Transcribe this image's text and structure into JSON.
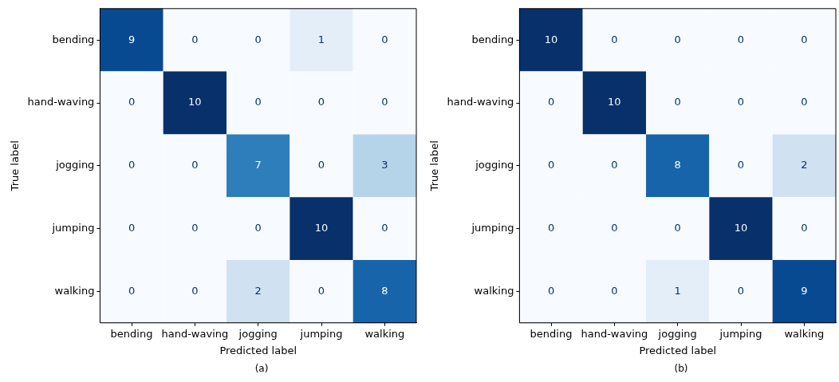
{
  "chart_data": [
    {
      "type": "heatmap",
      "categories": [
        "bending",
        "hand-waving",
        "jogging",
        "jumping",
        "walking"
      ],
      "y_categories": [
        "bending",
        "hand-waving",
        "jogging",
        "jumping",
        "walking"
      ],
      "xlabel": "Predicted label",
      "ylabel": "True label",
      "data_labels": true,
      "annotations": [
        "(a)"
      ],
      "cells": [
        [
          9,
          0,
          0,
          1,
          0
        ],
        [
          0,
          10,
          0,
          0,
          0
        ],
        [
          0,
          0,
          7,
          0,
          3
        ],
        [
          0,
          0,
          0,
          10,
          0
        ],
        [
          0,
          0,
          2,
          0,
          8
        ]
      ]
    },
    {
      "type": "heatmap",
      "categories": [
        "bending",
        "hand-waving",
        "jogging",
        "jumping",
        "walking"
      ],
      "y_categories": [
        "bending",
        "hand-waving",
        "jogging",
        "jumping",
        "walking"
      ],
      "xlabel": "Predicted label",
      "ylabel": "True label",
      "data_labels": true,
      "annotations": [
        "(b)"
      ],
      "cells": [
        [
          10,
          0,
          0,
          0,
          0
        ],
        [
          0,
          10,
          0,
          0,
          0
        ],
        [
          0,
          0,
          8,
          0,
          2
        ],
        [
          0,
          0,
          0,
          10,
          0
        ],
        [
          0,
          0,
          1,
          0,
          9
        ]
      ]
    }
  ]
}
